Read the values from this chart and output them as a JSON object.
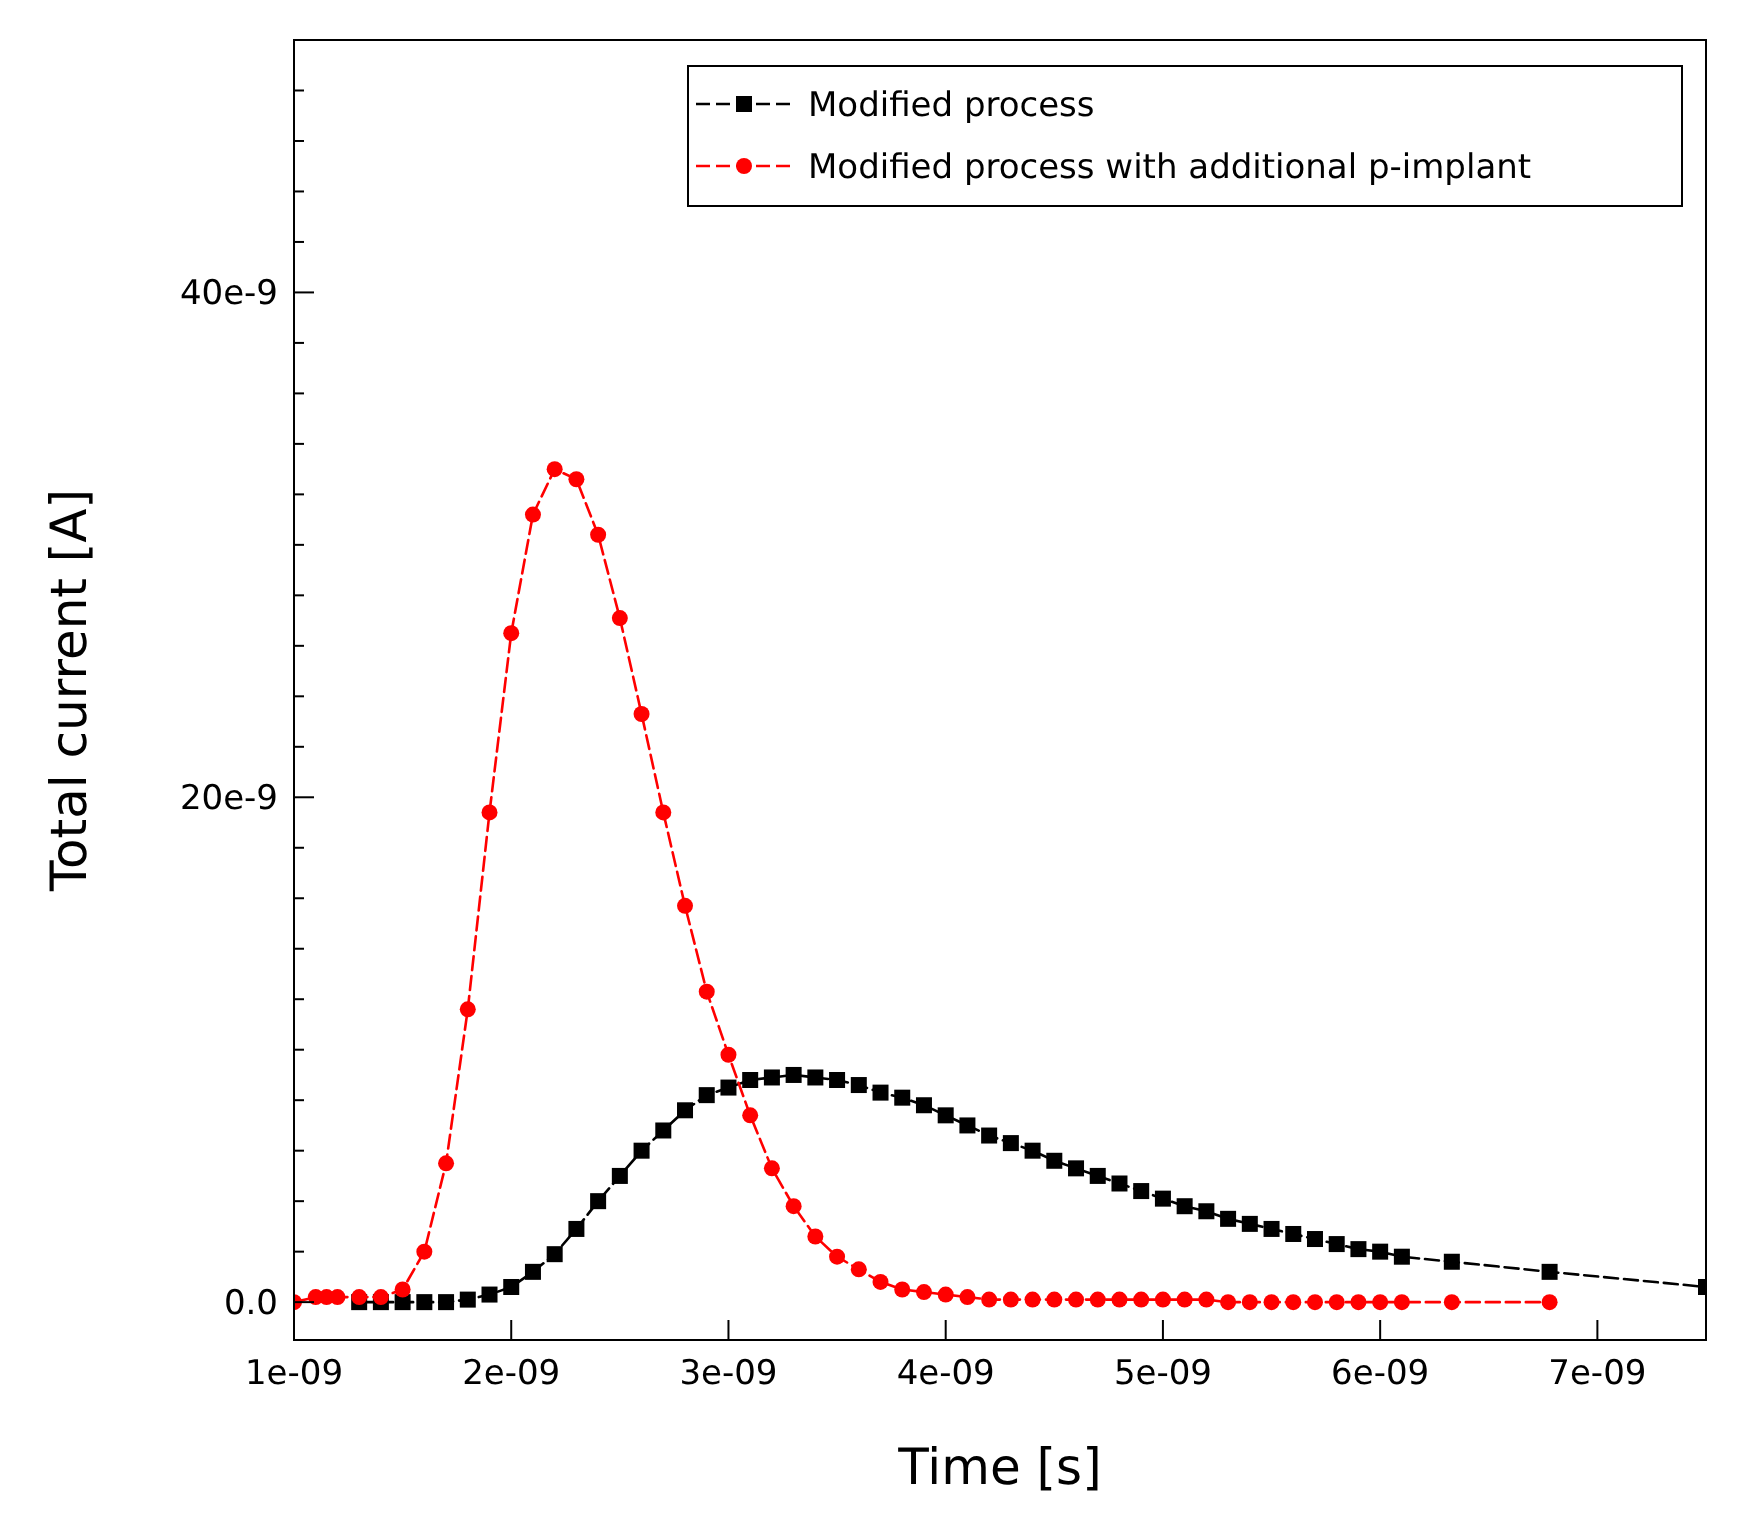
{
  "chart_data": {
    "type": "line",
    "xlabel": "Time [s]",
    "ylabel": "Total current [A]",
    "xlim": [
      1e-09,
      7.5e-09
    ],
    "ylim": [
      -1.5e-09,
      5e-08
    ],
    "xticks": [
      {
        "value": 1e-09,
        "label": "1e-09"
      },
      {
        "value": 2e-09,
        "label": "2e-09"
      },
      {
        "value": 3e-09,
        "label": "3e-09"
      },
      {
        "value": 4e-09,
        "label": "4e-09"
      },
      {
        "value": 5e-09,
        "label": "5e-09"
      },
      {
        "value": 6e-09,
        "label": "6e-09"
      },
      {
        "value": 7e-09,
        "label": "7e-09"
      }
    ],
    "yticks": [
      {
        "value": 0,
        "label": "0.0"
      },
      {
        "value": 2e-09,
        "label": null
      },
      {
        "value": 4e-09,
        "label": null
      },
      {
        "value": 6e-09,
        "label": null
      },
      {
        "value": 8e-09,
        "label": null
      },
      {
        "value": 1e-08,
        "label": null
      },
      {
        "value": 1.2e-08,
        "label": null
      },
      {
        "value": 1.4e-08,
        "label": null
      },
      {
        "value": 1.6e-08,
        "label": null
      },
      {
        "value": 1.8e-08,
        "label": null
      },
      {
        "value": 2e-08,
        "label": "20e-9"
      },
      {
        "value": 2.2e-08,
        "label": null
      },
      {
        "value": 2.4e-08,
        "label": null
      },
      {
        "value": 2.6e-08,
        "label": null
      },
      {
        "value": 2.8e-08,
        "label": null
      },
      {
        "value": 3e-08,
        "label": null
      },
      {
        "value": 3.2e-08,
        "label": null
      },
      {
        "value": 3.4e-08,
        "label": null
      },
      {
        "value": 3.6e-08,
        "label": null
      },
      {
        "value": 3.8e-08,
        "label": null
      },
      {
        "value": 4e-08,
        "label": "40e-9"
      },
      {
        "value": 4.2e-08,
        "label": null
      },
      {
        "value": 4.4e-08,
        "label": null
      },
      {
        "value": 4.6e-08,
        "label": null
      },
      {
        "value": 4.8e-08,
        "label": null
      }
    ],
    "grid": false,
    "legend": "top right",
    "line_style": "dashed",
    "series": [
      {
        "name": "Modified process",
        "color": "#000000",
        "marker": "square",
        "x": [
          1.3e-09,
          1.4e-09,
          1.5e-09,
          1.6e-09,
          1.7e-09,
          1.8e-09,
          1.9e-09,
          2e-09,
          2.1e-09,
          2.2e-09,
          2.3e-09,
          2.4e-09,
          2.5e-09,
          2.6e-09,
          2.7e-09,
          2.8e-09,
          2.9e-09,
          3e-09,
          3.1e-09,
          3.2e-09,
          3.3e-09,
          3.4e-09,
          3.5e-09,
          3.6e-09,
          3.7e-09,
          3.8e-09,
          3.9e-09,
          4e-09,
          4.1e-09,
          4.2e-09,
          4.3e-09,
          4.4e-09,
          4.5e-09,
          4.6e-09,
          4.7e-09,
          4.8e-09,
          4.9e-09,
          5e-09,
          5.1e-09,
          5.2e-09,
          5.3e-09,
          5.4e-09,
          5.5e-09,
          5.6e-09,
          5.7e-09,
          5.8e-09,
          5.9e-09,
          6e-09,
          6.1e-09,
          6.33e-09,
          6.78e-09,
          7.5e-09
        ],
        "values": [
          0,
          0,
          0,
          0,
          0,
          1e-10,
          3e-10,
          6e-10,
          1.2e-09,
          1.9e-09,
          2.9e-09,
          4e-09,
          5e-09,
          6e-09,
          6.8e-09,
          7.6e-09,
          8.2e-09,
          8.5e-09,
          8.8e-09,
          8.9e-09,
          9e-09,
          8.9e-09,
          8.8e-09,
          8.6e-09,
          8.3e-09,
          8.1e-09,
          7.8e-09,
          7.4e-09,
          7e-09,
          6.6e-09,
          6.3e-09,
          6e-09,
          5.6e-09,
          5.3e-09,
          5e-09,
          4.7e-09,
          4.4e-09,
          4.1e-09,
          3.8e-09,
          3.6e-09,
          3.3e-09,
          3.1e-09,
          2.9e-09,
          2.7e-09,
          2.5e-09,
          2.3e-09,
          2.1e-09,
          2e-09,
          1.8e-09,
          1.6e-09,
          1.2e-09,
          6e-10
        ]
      },
      {
        "name": "Modified process with additional p-implant",
        "color": "#ff0000",
        "marker": "circle",
        "x": [
          1e-09,
          1.1e-09,
          1.15e-09,
          1.2e-09,
          1.3e-09,
          1.4e-09,
          1.5e-09,
          1.6e-09,
          1.7e-09,
          1.8e-09,
          1.9e-09,
          2e-09,
          2.1e-09,
          2.2e-09,
          2.3e-09,
          2.4e-09,
          2.5e-09,
          2.6e-09,
          2.7e-09,
          2.8e-09,
          2.9e-09,
          3e-09,
          3.1e-09,
          3.2e-09,
          3.3e-09,
          3.4e-09,
          3.5e-09,
          3.6e-09,
          3.7e-09,
          3.8e-09,
          3.9e-09,
          4e-09,
          4.1e-09,
          4.2e-09,
          4.3e-09,
          4.4e-09,
          4.5e-09,
          4.6e-09,
          4.7e-09,
          4.8e-09,
          4.9e-09,
          5e-09,
          5.1e-09,
          5.2e-09,
          5.3e-09,
          5.4e-09,
          5.5e-09,
          5.6e-09,
          5.7e-09,
          5.8e-09,
          5.9e-09,
          6e-09,
          6.1e-09,
          6.33e-09,
          6.78e-09
        ],
        "values": [
          0,
          2e-10,
          2e-10,
          2e-10,
          2e-10,
          2e-10,
          5e-10,
          2e-09,
          5.5e-09,
          1.16e-08,
          1.94e-08,
          2.65e-08,
          3.12e-08,
          3.3e-08,
          3.26e-08,
          3.04e-08,
          2.71e-08,
          2.33e-08,
          1.94e-08,
          1.57e-08,
          1.23e-08,
          9.8e-09,
          7.4e-09,
          5.3e-09,
          3.8e-09,
          2.6e-09,
          1.8e-09,
          1.3e-09,
          8e-10,
          5e-10,
          4e-10,
          3e-10,
          2e-10,
          1e-10,
          1e-10,
          1e-10,
          1e-10,
          1e-10,
          1e-10,
          1e-10,
          1e-10,
          1e-10,
          1e-10,
          1e-10,
          0,
          0,
          0,
          0,
          0,
          0,
          0,
          0,
          0,
          0,
          0
        ]
      }
    ]
  }
}
